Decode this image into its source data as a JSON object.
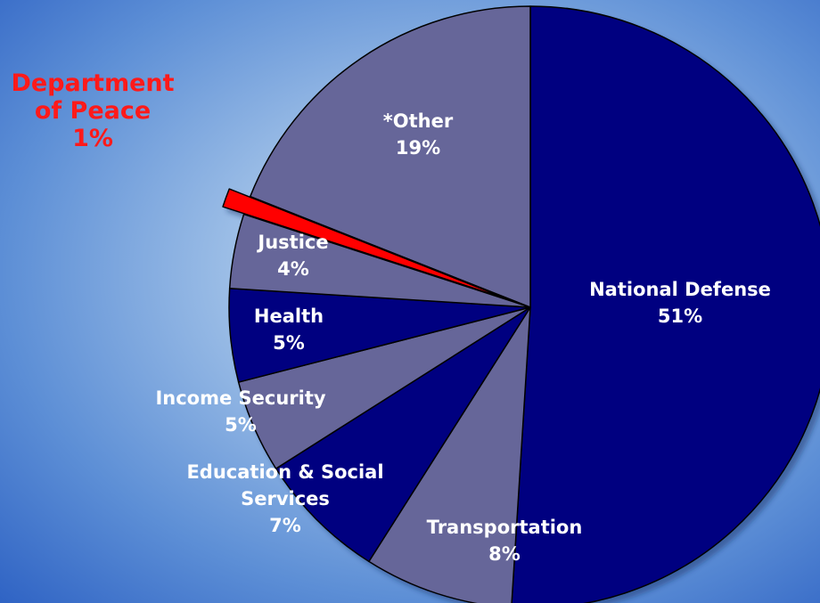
{
  "colors": {
    "dark_slice": "#000080",
    "light_slice": "#666699",
    "highlight_slice": "#ff0000",
    "label": "#ffffff",
    "highlight_label": "#ff1a1a"
  },
  "chart_data": {
    "type": "pie",
    "title": "",
    "slices": [
      {
        "name": "National Defense",
        "value": 51,
        "pct_label": "51%",
        "color": "#000080",
        "label_lines": [
          "National Defense"
        ]
      },
      {
        "name": "Transportation",
        "value": 8,
        "pct_label": "8%",
        "color": "#666699",
        "label_lines": [
          "Transportation"
        ]
      },
      {
        "name": "Education & Social Services",
        "value": 7,
        "pct_label": "7%",
        "color": "#000080",
        "label_lines": [
          "Education & Social",
          "Services"
        ]
      },
      {
        "name": "Income Security",
        "value": 5,
        "pct_label": "5%",
        "color": "#666699",
        "label_lines": [
          "Income Security"
        ]
      },
      {
        "name": "Health",
        "value": 5,
        "pct_label": "5%",
        "color": "#000080",
        "label_lines": [
          "Health"
        ]
      },
      {
        "name": "Justice",
        "value": 4,
        "pct_label": "4%",
        "color": "#666699",
        "label_lines": [
          "Justice"
        ]
      },
      {
        "name": "Department of Peace",
        "value": 1,
        "pct_label": "1%",
        "color": "#ff0000",
        "label_lines": [
          "Department",
          "of Peace"
        ],
        "exploded": true
      },
      {
        "name": "*Other",
        "value": 19,
        "pct_label": "19%",
        "color": "#666699",
        "label_lines": [
          "*Other"
        ]
      }
    ]
  }
}
